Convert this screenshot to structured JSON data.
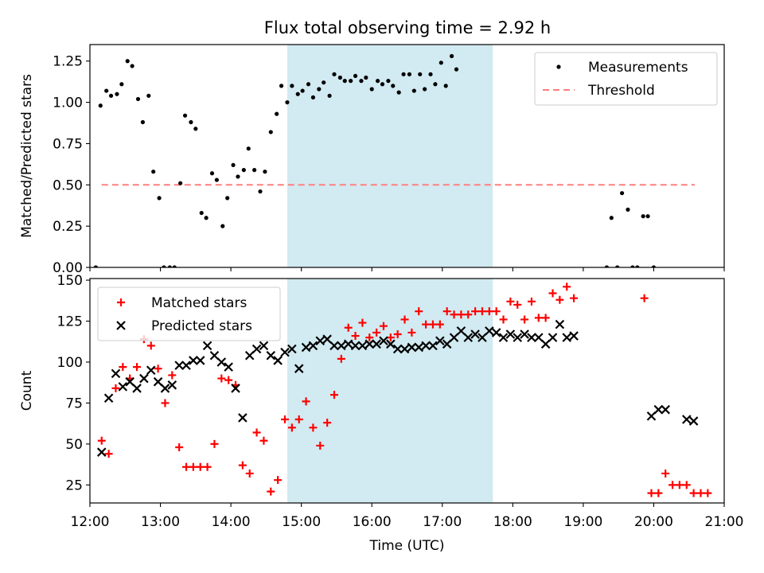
{
  "title": "Flux total observing time = 2.92 h",
  "colors": {
    "shade": "#add8e6",
    "measure": "#000000",
    "threshold": "#ff7f7f",
    "matched": "#ff0000",
    "predicted": "#000000"
  },
  "chart_data": [
    {
      "type": "scatter",
      "ylabel": "Matched/Predicted stars",
      "xlim": [
        12.0,
        21.0
      ],
      "ylim": [
        0.0,
        1.35
      ],
      "yticks": [
        0.0,
        0.25,
        0.5,
        0.75,
        1.0,
        1.25
      ],
      "ytick_labels": [
        "0.00",
        "0.25",
        "0.50",
        "0.75",
        "1.00",
        "1.25"
      ],
      "shaded_interval": [
        "14:48",
        "17:43"
      ],
      "legend_position": "upper right",
      "legend": [
        "Measurements",
        "Threshold"
      ],
      "threshold": {
        "name": "Threshold",
        "value": 0.5,
        "x_range": [
          "12:10",
          "20:35"
        ]
      },
      "series": [
        {
          "name": "Measurements",
          "points": [
            [
              "12:05",
              0.0
            ],
            [
              "12:09",
              0.98
            ],
            [
              "12:14",
              1.07
            ],
            [
              "12:18",
              1.04
            ],
            [
              "12:23",
              1.05
            ],
            [
              "12:27",
              1.11
            ],
            [
              "12:32",
              1.25
            ],
            [
              "12:36",
              1.22
            ],
            [
              "12:41",
              1.02
            ],
            [
              "12:45",
              0.88
            ],
            [
              "12:50",
              1.04
            ],
            [
              "12:54",
              0.58
            ],
            [
              "12:59",
              0.42
            ],
            [
              "13:03",
              0.0
            ],
            [
              "13:08",
              0.0
            ],
            [
              "13:12",
              0.0
            ],
            [
              "13:17",
              0.51
            ],
            [
              "13:21",
              0.92
            ],
            [
              "13:26",
              0.88
            ],
            [
              "13:30",
              0.84
            ],
            [
              "13:35",
              0.33
            ],
            [
              "13:39",
              0.3
            ],
            [
              "13:44",
              0.57
            ],
            [
              "13:48",
              0.53
            ],
            [
              "13:53",
              0.25
            ],
            [
              "13:57",
              0.42
            ],
            [
              "14:02",
              0.62
            ],
            [
              "14:06",
              0.55
            ],
            [
              "14:11",
              0.59
            ],
            [
              "14:15",
              0.72
            ],
            [
              "14:20",
              0.59
            ],
            [
              "14:25",
              0.46
            ],
            [
              "14:29",
              0.58
            ],
            [
              "14:34",
              0.82
            ],
            [
              "14:39",
              0.93
            ],
            [
              "14:43",
              1.1
            ],
            [
              "14:48",
              1.0
            ],
            [
              "14:52",
              1.1
            ],
            [
              "14:57",
              1.05
            ],
            [
              "15:01",
              1.07
            ],
            [
              "15:06",
              1.11
            ],
            [
              "15:10",
              1.03
            ],
            [
              "15:15",
              1.08
            ],
            [
              "15:19",
              1.12
            ],
            [
              "15:24",
              1.04
            ],
            [
              "15:28",
              1.17
            ],
            [
              "15:33",
              1.15
            ],
            [
              "15:37",
              1.13
            ],
            [
              "15:42",
              1.13
            ],
            [
              "15:46",
              1.16
            ],
            [
              "15:51",
              1.13
            ],
            [
              "15:55",
              1.15
            ],
            [
              "16:00",
              1.08
            ],
            [
              "16:05",
              1.13
            ],
            [
              "16:09",
              1.11
            ],
            [
              "16:14",
              1.13
            ],
            [
              "16:18",
              1.1
            ],
            [
              "16:23",
              1.06
            ],
            [
              "16:27",
              1.17
            ],
            [
              "16:32",
              1.17
            ],
            [
              "16:36",
              1.07
            ],
            [
              "16:41",
              1.17
            ],
            [
              "16:45",
              1.08
            ],
            [
              "16:50",
              1.17
            ],
            [
              "16:54",
              1.11
            ],
            [
              "16:59",
              1.24
            ],
            [
              "17:03",
              1.1
            ],
            [
              "17:08",
              1.28
            ],
            [
              "17:12",
              1.2
            ],
            [
              "19:20",
              0.0
            ],
            [
              "19:24",
              0.3
            ],
            [
              "19:29",
              0.0
            ],
            [
              "19:33",
              0.45
            ],
            [
              "19:38",
              0.35
            ],
            [
              "19:42",
              0.0
            ],
            [
              "19:46",
              0.0
            ],
            [
              "19:51",
              0.31
            ],
            [
              "19:55",
              0.31
            ],
            [
              "20:00",
              0.0
            ]
          ]
        }
      ]
    },
    {
      "type": "scatter",
      "ylabel": "Count",
      "xlabel": "Time (UTC)",
      "xlim": [
        12.0,
        21.0
      ],
      "ylim": [
        14,
        151
      ],
      "yticks": [
        25,
        50,
        75,
        100,
        125,
        150
      ],
      "xticks": [
        "12:00",
        "13:00",
        "14:00",
        "15:00",
        "16:00",
        "17:00",
        "18:00",
        "19:00",
        "20:00",
        "21:00"
      ],
      "shaded_interval": [
        "14:48",
        "17:43"
      ],
      "legend_position": "upper left",
      "legend": [
        "Matched stars",
        "Predicted stars"
      ],
      "series": [
        {
          "name": "Matched stars",
          "points": [
            [
              "12:10",
              52
            ],
            [
              "12:16",
              44
            ],
            [
              "12:22",
              84
            ],
            [
              "12:28",
              97
            ],
            [
              "12:34",
              90
            ],
            [
              "12:40",
              97
            ],
            [
              "12:46",
              114
            ],
            [
              "12:52",
              110
            ],
            [
              "12:58",
              96
            ],
            [
              "13:04",
              75
            ],
            [
              "13:10",
              92
            ],
            [
              "13:16",
              48
            ],
            [
              "13:22",
              36
            ],
            [
              "13:28",
              36
            ],
            [
              "13:34",
              36
            ],
            [
              "13:40",
              36
            ],
            [
              "13:46",
              50
            ],
            [
              "13:52",
              90
            ],
            [
              "13:58",
              89
            ],
            [
              "14:04",
              86
            ],
            [
              "14:10",
              37
            ],
            [
              "14:16",
              32
            ],
            [
              "14:22",
              57
            ],
            [
              "14:28",
              52
            ],
            [
              "14:34",
              21
            ],
            [
              "14:40",
              28
            ],
            [
              "14:46",
              65
            ],
            [
              "14:52",
              60
            ],
            [
              "14:58",
              65
            ],
            [
              "15:04",
              76
            ],
            [
              "15:10",
              60
            ],
            [
              "15:16",
              49
            ],
            [
              "15:22",
              63
            ],
            [
              "15:28",
              80
            ],
            [
              "15:34",
              102
            ],
            [
              "15:40",
              121
            ],
            [
              "15:46",
              116
            ],
            [
              "15:52",
              124
            ],
            [
              "15:58",
              115
            ],
            [
              "16:04",
              118
            ],
            [
              "16:10",
              122
            ],
            [
              "16:16",
              115
            ],
            [
              "16:22",
              117
            ],
            [
              "16:28",
              126
            ],
            [
              "16:34",
              118
            ],
            [
              "16:40",
              131
            ],
            [
              "16:46",
              123
            ],
            [
              "16:52",
              123
            ],
            [
              "16:58",
              123
            ],
            [
              "17:04",
              131
            ],
            [
              "17:10",
              129
            ],
            [
              "17:16",
              129
            ],
            [
              "17:22",
              129
            ],
            [
              "17:28",
              131
            ],
            [
              "17:34",
              131
            ],
            [
              "17:40",
              131
            ],
            [
              "17:46",
              131
            ],
            [
              "17:52",
              126
            ],
            [
              "17:58",
              137
            ],
            [
              "18:04",
              135
            ],
            [
              "18:10",
              126
            ],
            [
              "18:16",
              137
            ],
            [
              "18:22",
              127
            ],
            [
              "18:28",
              127
            ],
            [
              "18:34",
              142
            ],
            [
              "18:40",
              138
            ],
            [
              "18:46",
              146
            ],
            [
              "18:52",
              139
            ],
            [
              "19:52",
              139
            ],
            [
              "19:58",
              20
            ],
            [
              "20:04",
              20
            ],
            [
              "20:10",
              32
            ],
            [
              "20:16",
              25
            ],
            [
              "20:22",
              25
            ],
            [
              "20:28",
              25
            ],
            [
              "20:34",
              20
            ],
            [
              "20:40",
              20
            ],
            [
              "20:46",
              20
            ]
          ]
        },
        {
          "name": "Predicted stars",
          "points": [
            [
              "12:10",
              45
            ],
            [
              "12:16",
              78
            ],
            [
              "12:22",
              93
            ],
            [
              "12:28",
              85
            ],
            [
              "12:34",
              88
            ],
            [
              "12:40",
              84
            ],
            [
              "12:46",
              90
            ],
            [
              "12:52",
              95
            ],
            [
              "12:58",
              88
            ],
            [
              "13:04",
              84
            ],
            [
              "13:10",
              86
            ],
            [
              "13:16",
              98
            ],
            [
              "13:22",
              98
            ],
            [
              "13:28",
              101
            ],
            [
              "13:34",
              101
            ],
            [
              "13:40",
              110
            ],
            [
              "13:46",
              104
            ],
            [
              "13:52",
              100
            ],
            [
              "13:58",
              97
            ],
            [
              "14:04",
              84
            ],
            [
              "14:10",
              66
            ],
            [
              "14:16",
              104
            ],
            [
              "14:22",
              108
            ],
            [
              "14:28",
              110
            ],
            [
              "14:34",
              104
            ],
            [
              "14:40",
              101
            ],
            [
              "14:46",
              106
            ],
            [
              "14:52",
              108
            ],
            [
              "14:58",
              96
            ],
            [
              "15:04",
              109
            ],
            [
              "15:10",
              110
            ],
            [
              "15:16",
              113
            ],
            [
              "15:22",
              114
            ],
            [
              "15:28",
              110
            ],
            [
              "15:34",
              110
            ],
            [
              "15:40",
              111
            ],
            [
              "15:46",
              110
            ],
            [
              "15:52",
              110
            ],
            [
              "15:58",
              111
            ],
            [
              "16:04",
              111
            ],
            [
              "16:10",
              113
            ],
            [
              "16:16",
              111
            ],
            [
              "16:22",
              108
            ],
            [
              "16:28",
              108
            ],
            [
              "16:34",
              109
            ],
            [
              "16:40",
              109
            ],
            [
              "16:46",
              110
            ],
            [
              "16:52",
              110
            ],
            [
              "16:58",
              113
            ],
            [
              "17:04",
              111
            ],
            [
              "17:10",
              115
            ],
            [
              "17:16",
              119
            ],
            [
              "17:22",
              115
            ],
            [
              "17:28",
              117
            ],
            [
              "17:34",
              115
            ],
            [
              "17:40",
              119
            ],
            [
              "17:46",
              118
            ],
            [
              "17:52",
              115
            ],
            [
              "17:58",
              117
            ],
            [
              "18:04",
              115
            ],
            [
              "18:10",
              117
            ],
            [
              "18:16",
              115
            ],
            [
              "18:22",
              115
            ],
            [
              "18:28",
              111
            ],
            [
              "18:34",
              115
            ],
            [
              "18:40",
              123
            ],
            [
              "18:46",
              115
            ],
            [
              "18:52",
              116
            ],
            [
              "19:58",
              67
            ],
            [
              "20:04",
              71
            ],
            [
              "20:10",
              71
            ],
            [
              "20:28",
              65
            ],
            [
              "20:34",
              64
            ]
          ]
        }
      ]
    }
  ]
}
